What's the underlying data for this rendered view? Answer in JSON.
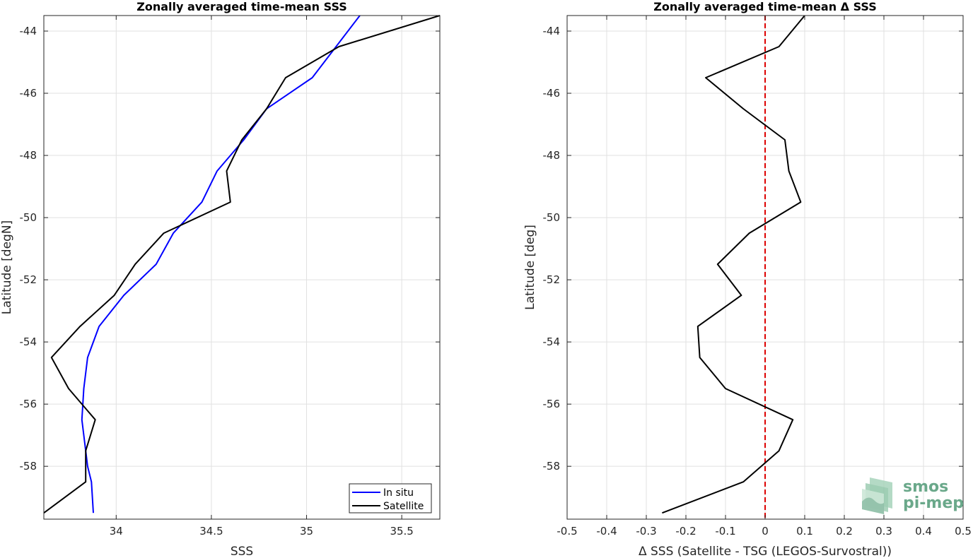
{
  "chart_data": [
    {
      "type": "line",
      "title": "Zonally averaged time-mean SSS",
      "xlabel": "SSS",
      "ylabel": "Latitude [degN]",
      "xlim": [
        33.62,
        35.7
      ],
      "ylim": [
        -59.7,
        -43.5
      ],
      "x_ticks": [
        "34",
        "34.5",
        "35",
        "35.5"
      ],
      "x_tick_values": [
        34,
        34.5,
        35,
        35.5
      ],
      "y_ticks": [
        "-44",
        "-46",
        "-48",
        "-50",
        "-52",
        "-54",
        "-56",
        "-58"
      ],
      "y_tick_values": [
        -44,
        -46,
        -48,
        -50,
        -52,
        -54,
        -56,
        -58
      ],
      "grid": true,
      "legend_position": "bottom-right",
      "series": [
        {
          "name": "In situ",
          "color": "#0000ff",
          "x": [
            35.28,
            35.03,
            34.79,
            34.67,
            34.53,
            34.45,
            34.3,
            34.21,
            34.04,
            33.91,
            33.85,
            33.83,
            33.82,
            33.84,
            33.85,
            33.87,
            33.88
          ],
          "y": [
            -43.5,
            -45.5,
            -46.5,
            -47.5,
            -48.5,
            -49.5,
            -50.5,
            -51.5,
            -52.5,
            -53.5,
            -54.5,
            -55.5,
            -56.5,
            -57.5,
            -58,
            -58.5,
            -59.5
          ]
        },
        {
          "name": "Satellite",
          "color": "#000000",
          "x": [
            35.7,
            35.17,
            34.89,
            34.79,
            34.66,
            34.58,
            34.6,
            34.25,
            34.1,
            33.99,
            33.81,
            33.66,
            33.75,
            33.89,
            33.84,
            33.84,
            33.62
          ],
          "y": [
            -43.5,
            -44.5,
            -45.5,
            -46.5,
            -47.5,
            -48.5,
            -49.5,
            -50.5,
            -51.5,
            -52.5,
            -53.5,
            -54.5,
            -55.5,
            -56.5,
            -57.5,
            -58.5,
            -59.5
          ]
        }
      ]
    },
    {
      "type": "line",
      "title": "Zonally averaged time-mean Δ SSS",
      "xlabel": "Δ SSS (Satellite - TSG (LEGOS-Survostral))",
      "ylabel": "Latitude [deg]",
      "xlim": [
        -0.5,
        0.5
      ],
      "ylim": [
        -59.7,
        -43.5
      ],
      "x_ticks": [
        "-0.5",
        "-0.4",
        "-0.3",
        "-0.2",
        "-0.1",
        "0",
        "0.1",
        "0.2",
        "0.3",
        "0.4",
        "0.5"
      ],
      "x_tick_values": [
        -0.5,
        -0.4,
        -0.3,
        -0.2,
        -0.1,
        0,
        0.1,
        0.2,
        0.3,
        0.4,
        0.5
      ],
      "y_ticks": [
        "-44",
        "-46",
        "-48",
        "-50",
        "-52",
        "-54",
        "-56",
        "-58"
      ],
      "y_tick_values": [
        -44,
        -46,
        -48,
        -50,
        -52,
        -54,
        -56,
        -58
      ],
      "grid": true,
      "reference_line": {
        "x": 0,
        "color": "#dd0000",
        "style": "dashed"
      },
      "series": [
        {
          "color": "#000000",
          "x": [
            0.1,
            0.035,
            -0.15,
            -0.055,
            0.05,
            0.06,
            0.09,
            -0.04,
            -0.12,
            -0.06,
            -0.17,
            -0.165,
            -0.1,
            0.07,
            0.035,
            -0.055,
            -0.26
          ],
          "y": [
            -43.5,
            -44.5,
            -45.5,
            -46.5,
            -47.5,
            -48.5,
            -49.5,
            -50.5,
            -51.5,
            -52.5,
            -53.5,
            -54.5,
            -55.5,
            -56.5,
            -57.5,
            -58.5,
            -59.5
          ]
        }
      ]
    }
  ],
  "logo": {
    "line1": "smos",
    "line2": "pi-mep",
    "color": "#6aa88a"
  }
}
